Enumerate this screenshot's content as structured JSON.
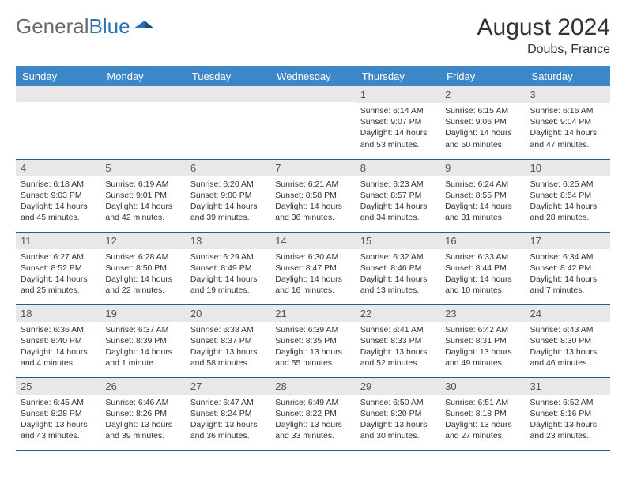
{
  "brand": {
    "part1": "General",
    "part2": "Blue"
  },
  "title": "August 2024",
  "location": "Doubs, France",
  "colors": {
    "header_bg": "#3b87c8",
    "header_text": "#ffffff",
    "daynum_bg": "#e8e8e8",
    "row_border": "#2a5a8a",
    "brand_gray": "#6a6a6a",
    "brand_blue": "#2a72b5"
  },
  "weekdays": [
    "Sunday",
    "Monday",
    "Tuesday",
    "Wednesday",
    "Thursday",
    "Friday",
    "Saturday"
  ],
  "cells": [
    {
      "n": "",
      "lines": []
    },
    {
      "n": "",
      "lines": []
    },
    {
      "n": "",
      "lines": []
    },
    {
      "n": "",
      "lines": []
    },
    {
      "n": "1",
      "lines": [
        "Sunrise: 6:14 AM",
        "Sunset: 9:07 PM",
        "Daylight: 14 hours and 53 minutes."
      ]
    },
    {
      "n": "2",
      "lines": [
        "Sunrise: 6:15 AM",
        "Sunset: 9:06 PM",
        "Daylight: 14 hours and 50 minutes."
      ]
    },
    {
      "n": "3",
      "lines": [
        "Sunrise: 6:16 AM",
        "Sunset: 9:04 PM",
        "Daylight: 14 hours and 47 minutes."
      ]
    },
    {
      "n": "4",
      "lines": [
        "Sunrise: 6:18 AM",
        "Sunset: 9:03 PM",
        "Daylight: 14 hours and 45 minutes."
      ]
    },
    {
      "n": "5",
      "lines": [
        "Sunrise: 6:19 AM",
        "Sunset: 9:01 PM",
        "Daylight: 14 hours and 42 minutes."
      ]
    },
    {
      "n": "6",
      "lines": [
        "Sunrise: 6:20 AM",
        "Sunset: 9:00 PM",
        "Daylight: 14 hours and 39 minutes."
      ]
    },
    {
      "n": "7",
      "lines": [
        "Sunrise: 6:21 AM",
        "Sunset: 8:58 PM",
        "Daylight: 14 hours and 36 minutes."
      ]
    },
    {
      "n": "8",
      "lines": [
        "Sunrise: 6:23 AM",
        "Sunset: 8:57 PM",
        "Daylight: 14 hours and 34 minutes."
      ]
    },
    {
      "n": "9",
      "lines": [
        "Sunrise: 6:24 AM",
        "Sunset: 8:55 PM",
        "Daylight: 14 hours and 31 minutes."
      ]
    },
    {
      "n": "10",
      "lines": [
        "Sunrise: 6:25 AM",
        "Sunset: 8:54 PM",
        "Daylight: 14 hours and 28 minutes."
      ]
    },
    {
      "n": "11",
      "lines": [
        "Sunrise: 6:27 AM",
        "Sunset: 8:52 PM",
        "Daylight: 14 hours and 25 minutes."
      ]
    },
    {
      "n": "12",
      "lines": [
        "Sunrise: 6:28 AM",
        "Sunset: 8:50 PM",
        "Daylight: 14 hours and 22 minutes."
      ]
    },
    {
      "n": "13",
      "lines": [
        "Sunrise: 6:29 AM",
        "Sunset: 8:49 PM",
        "Daylight: 14 hours and 19 minutes."
      ]
    },
    {
      "n": "14",
      "lines": [
        "Sunrise: 6:30 AM",
        "Sunset: 8:47 PM",
        "Daylight: 14 hours and 16 minutes."
      ]
    },
    {
      "n": "15",
      "lines": [
        "Sunrise: 6:32 AM",
        "Sunset: 8:46 PM",
        "Daylight: 14 hours and 13 minutes."
      ]
    },
    {
      "n": "16",
      "lines": [
        "Sunrise: 6:33 AM",
        "Sunset: 8:44 PM",
        "Daylight: 14 hours and 10 minutes."
      ]
    },
    {
      "n": "17",
      "lines": [
        "Sunrise: 6:34 AM",
        "Sunset: 8:42 PM",
        "Daylight: 14 hours and 7 minutes."
      ]
    },
    {
      "n": "18",
      "lines": [
        "Sunrise: 6:36 AM",
        "Sunset: 8:40 PM",
        "Daylight: 14 hours and 4 minutes."
      ]
    },
    {
      "n": "19",
      "lines": [
        "Sunrise: 6:37 AM",
        "Sunset: 8:39 PM",
        "Daylight: 14 hours and 1 minute."
      ]
    },
    {
      "n": "20",
      "lines": [
        "Sunrise: 6:38 AM",
        "Sunset: 8:37 PM",
        "Daylight: 13 hours and 58 minutes."
      ]
    },
    {
      "n": "21",
      "lines": [
        "Sunrise: 6:39 AM",
        "Sunset: 8:35 PM",
        "Daylight: 13 hours and 55 minutes."
      ]
    },
    {
      "n": "22",
      "lines": [
        "Sunrise: 6:41 AM",
        "Sunset: 8:33 PM",
        "Daylight: 13 hours and 52 minutes."
      ]
    },
    {
      "n": "23",
      "lines": [
        "Sunrise: 6:42 AM",
        "Sunset: 8:31 PM",
        "Daylight: 13 hours and 49 minutes."
      ]
    },
    {
      "n": "24",
      "lines": [
        "Sunrise: 6:43 AM",
        "Sunset: 8:30 PM",
        "Daylight: 13 hours and 46 minutes."
      ]
    },
    {
      "n": "25",
      "lines": [
        "Sunrise: 6:45 AM",
        "Sunset: 8:28 PM",
        "Daylight: 13 hours and 43 minutes."
      ]
    },
    {
      "n": "26",
      "lines": [
        "Sunrise: 6:46 AM",
        "Sunset: 8:26 PM",
        "Daylight: 13 hours and 39 minutes."
      ]
    },
    {
      "n": "27",
      "lines": [
        "Sunrise: 6:47 AM",
        "Sunset: 8:24 PM",
        "Daylight: 13 hours and 36 minutes."
      ]
    },
    {
      "n": "28",
      "lines": [
        "Sunrise: 6:49 AM",
        "Sunset: 8:22 PM",
        "Daylight: 13 hours and 33 minutes."
      ]
    },
    {
      "n": "29",
      "lines": [
        "Sunrise: 6:50 AM",
        "Sunset: 8:20 PM",
        "Daylight: 13 hours and 30 minutes."
      ]
    },
    {
      "n": "30",
      "lines": [
        "Sunrise: 6:51 AM",
        "Sunset: 8:18 PM",
        "Daylight: 13 hours and 27 minutes."
      ]
    },
    {
      "n": "31",
      "lines": [
        "Sunrise: 6:52 AM",
        "Sunset: 8:16 PM",
        "Daylight: 13 hours and 23 minutes."
      ]
    }
  ]
}
